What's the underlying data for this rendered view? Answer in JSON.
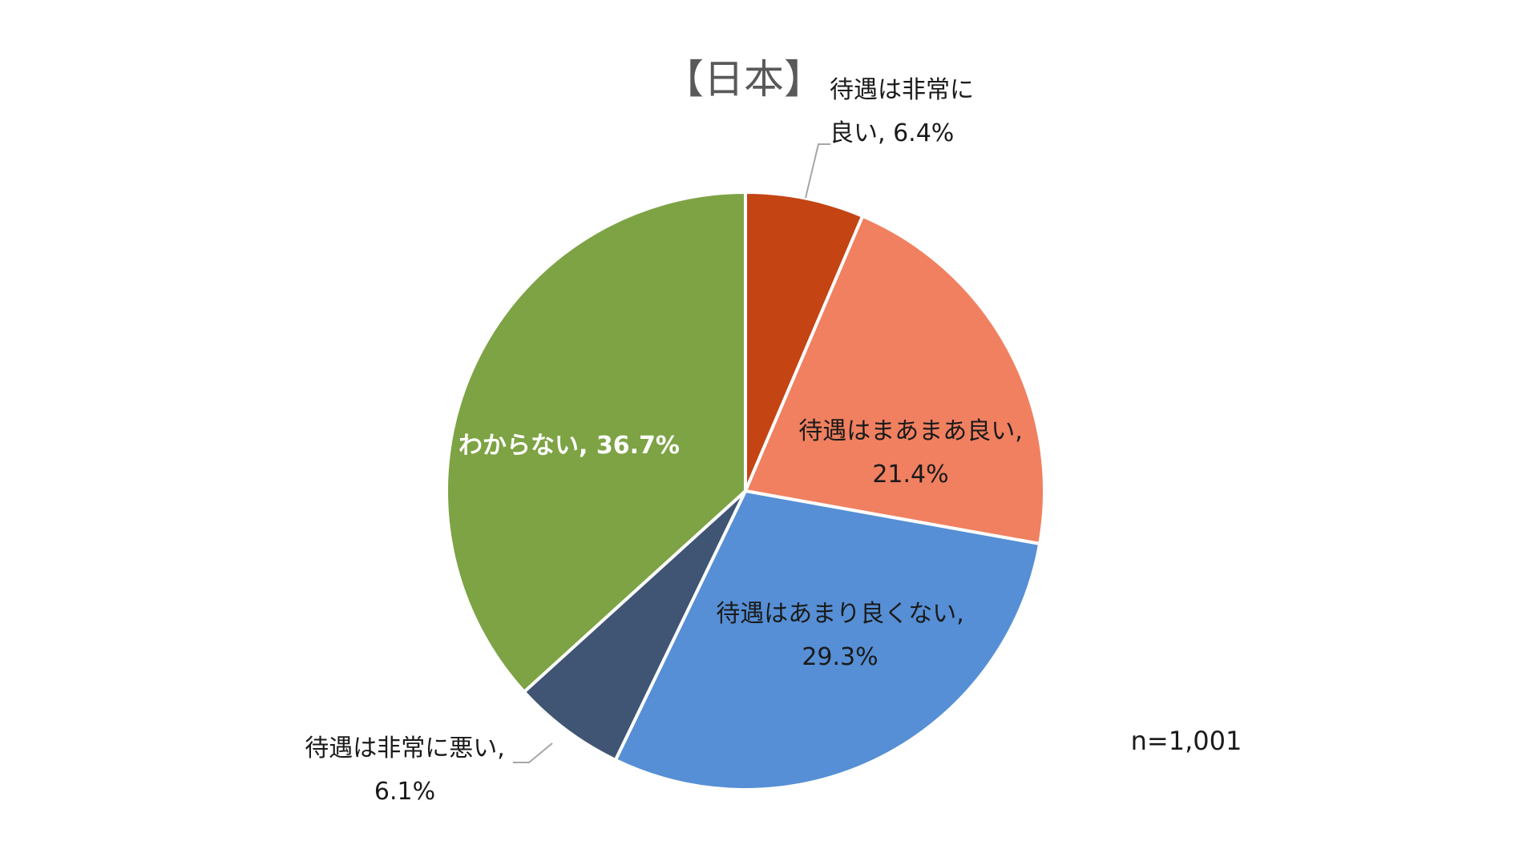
{
  "chart_data": {
    "type": "pie",
    "title": "【日本】",
    "note": "n=1,001",
    "unit": "%",
    "slices": [
      {
        "label_lines": [
          "待遇は非常に",
          "良い, 6.4%"
        ],
        "category": "待遇は非常に良い",
        "value": 6.4,
        "color": "#c44414"
      },
      {
        "label_lines": [
          "待遇はまあまあ良い,",
          "21.4%"
        ],
        "category": "待遇はまあまあ良い",
        "value": 21.4,
        "color": "#f08060"
      },
      {
        "label_lines": [
          "待遇はあまり良くない,",
          "29.3%"
        ],
        "category": "待遇はあまり良くない",
        "value": 29.3,
        "color": "#568fd5"
      },
      {
        "label_lines": [
          "待遇は非常に悪い,",
          "6.1%"
        ],
        "category": "待遇は非常に悪い",
        "value": 6.1,
        "color": "#3f5573"
      },
      {
        "label_lines": [
          "わからない, 36.7%"
        ],
        "category": "わからない",
        "value": 36.7,
        "color": "#7da344"
      }
    ]
  }
}
